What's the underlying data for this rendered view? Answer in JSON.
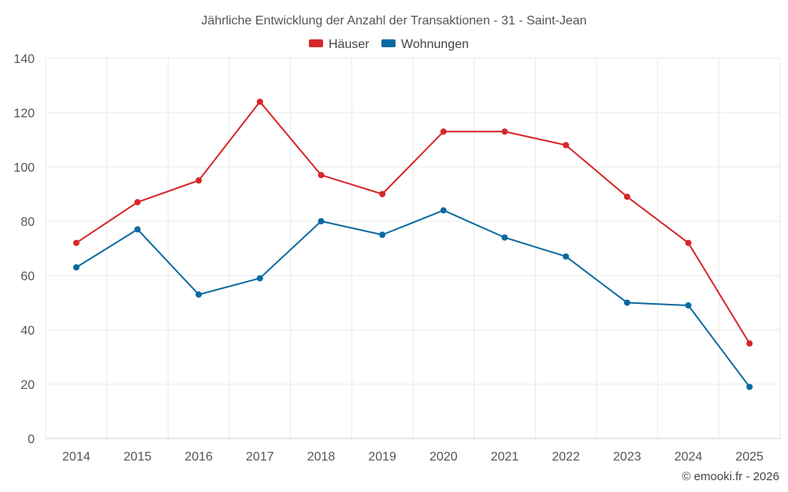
{
  "chart_data": {
    "type": "line",
    "title": "Jährliche Entwicklung der Anzahl der Transaktionen - 31 - Saint-Jean",
    "categories": [
      "2014",
      "2015",
      "2016",
      "2017",
      "2018",
      "2019",
      "2020",
      "2021",
      "2022",
      "2023",
      "2024",
      "2025"
    ],
    "series": [
      {
        "name": "Häuser",
        "color": "#d62728",
        "values": [
          72,
          87,
          95,
          124,
          97,
          90,
          113,
          113,
          108,
          89,
          72,
          35
        ]
      },
      {
        "name": "Wohnungen",
        "color": "#0b6aa0",
        "values": [
          63,
          77,
          53,
          59,
          80,
          75,
          84,
          74,
          67,
          50,
          49,
          19
        ]
      }
    ],
    "ylim": [
      0,
      140
    ],
    "yticks": [
      0,
      20,
      40,
      60,
      80,
      100,
      120,
      140
    ],
    "xlabel": "",
    "ylabel": "",
    "grid": true,
    "legend_position": "top-center"
  },
  "credit": "© emooki.fr - 2026"
}
